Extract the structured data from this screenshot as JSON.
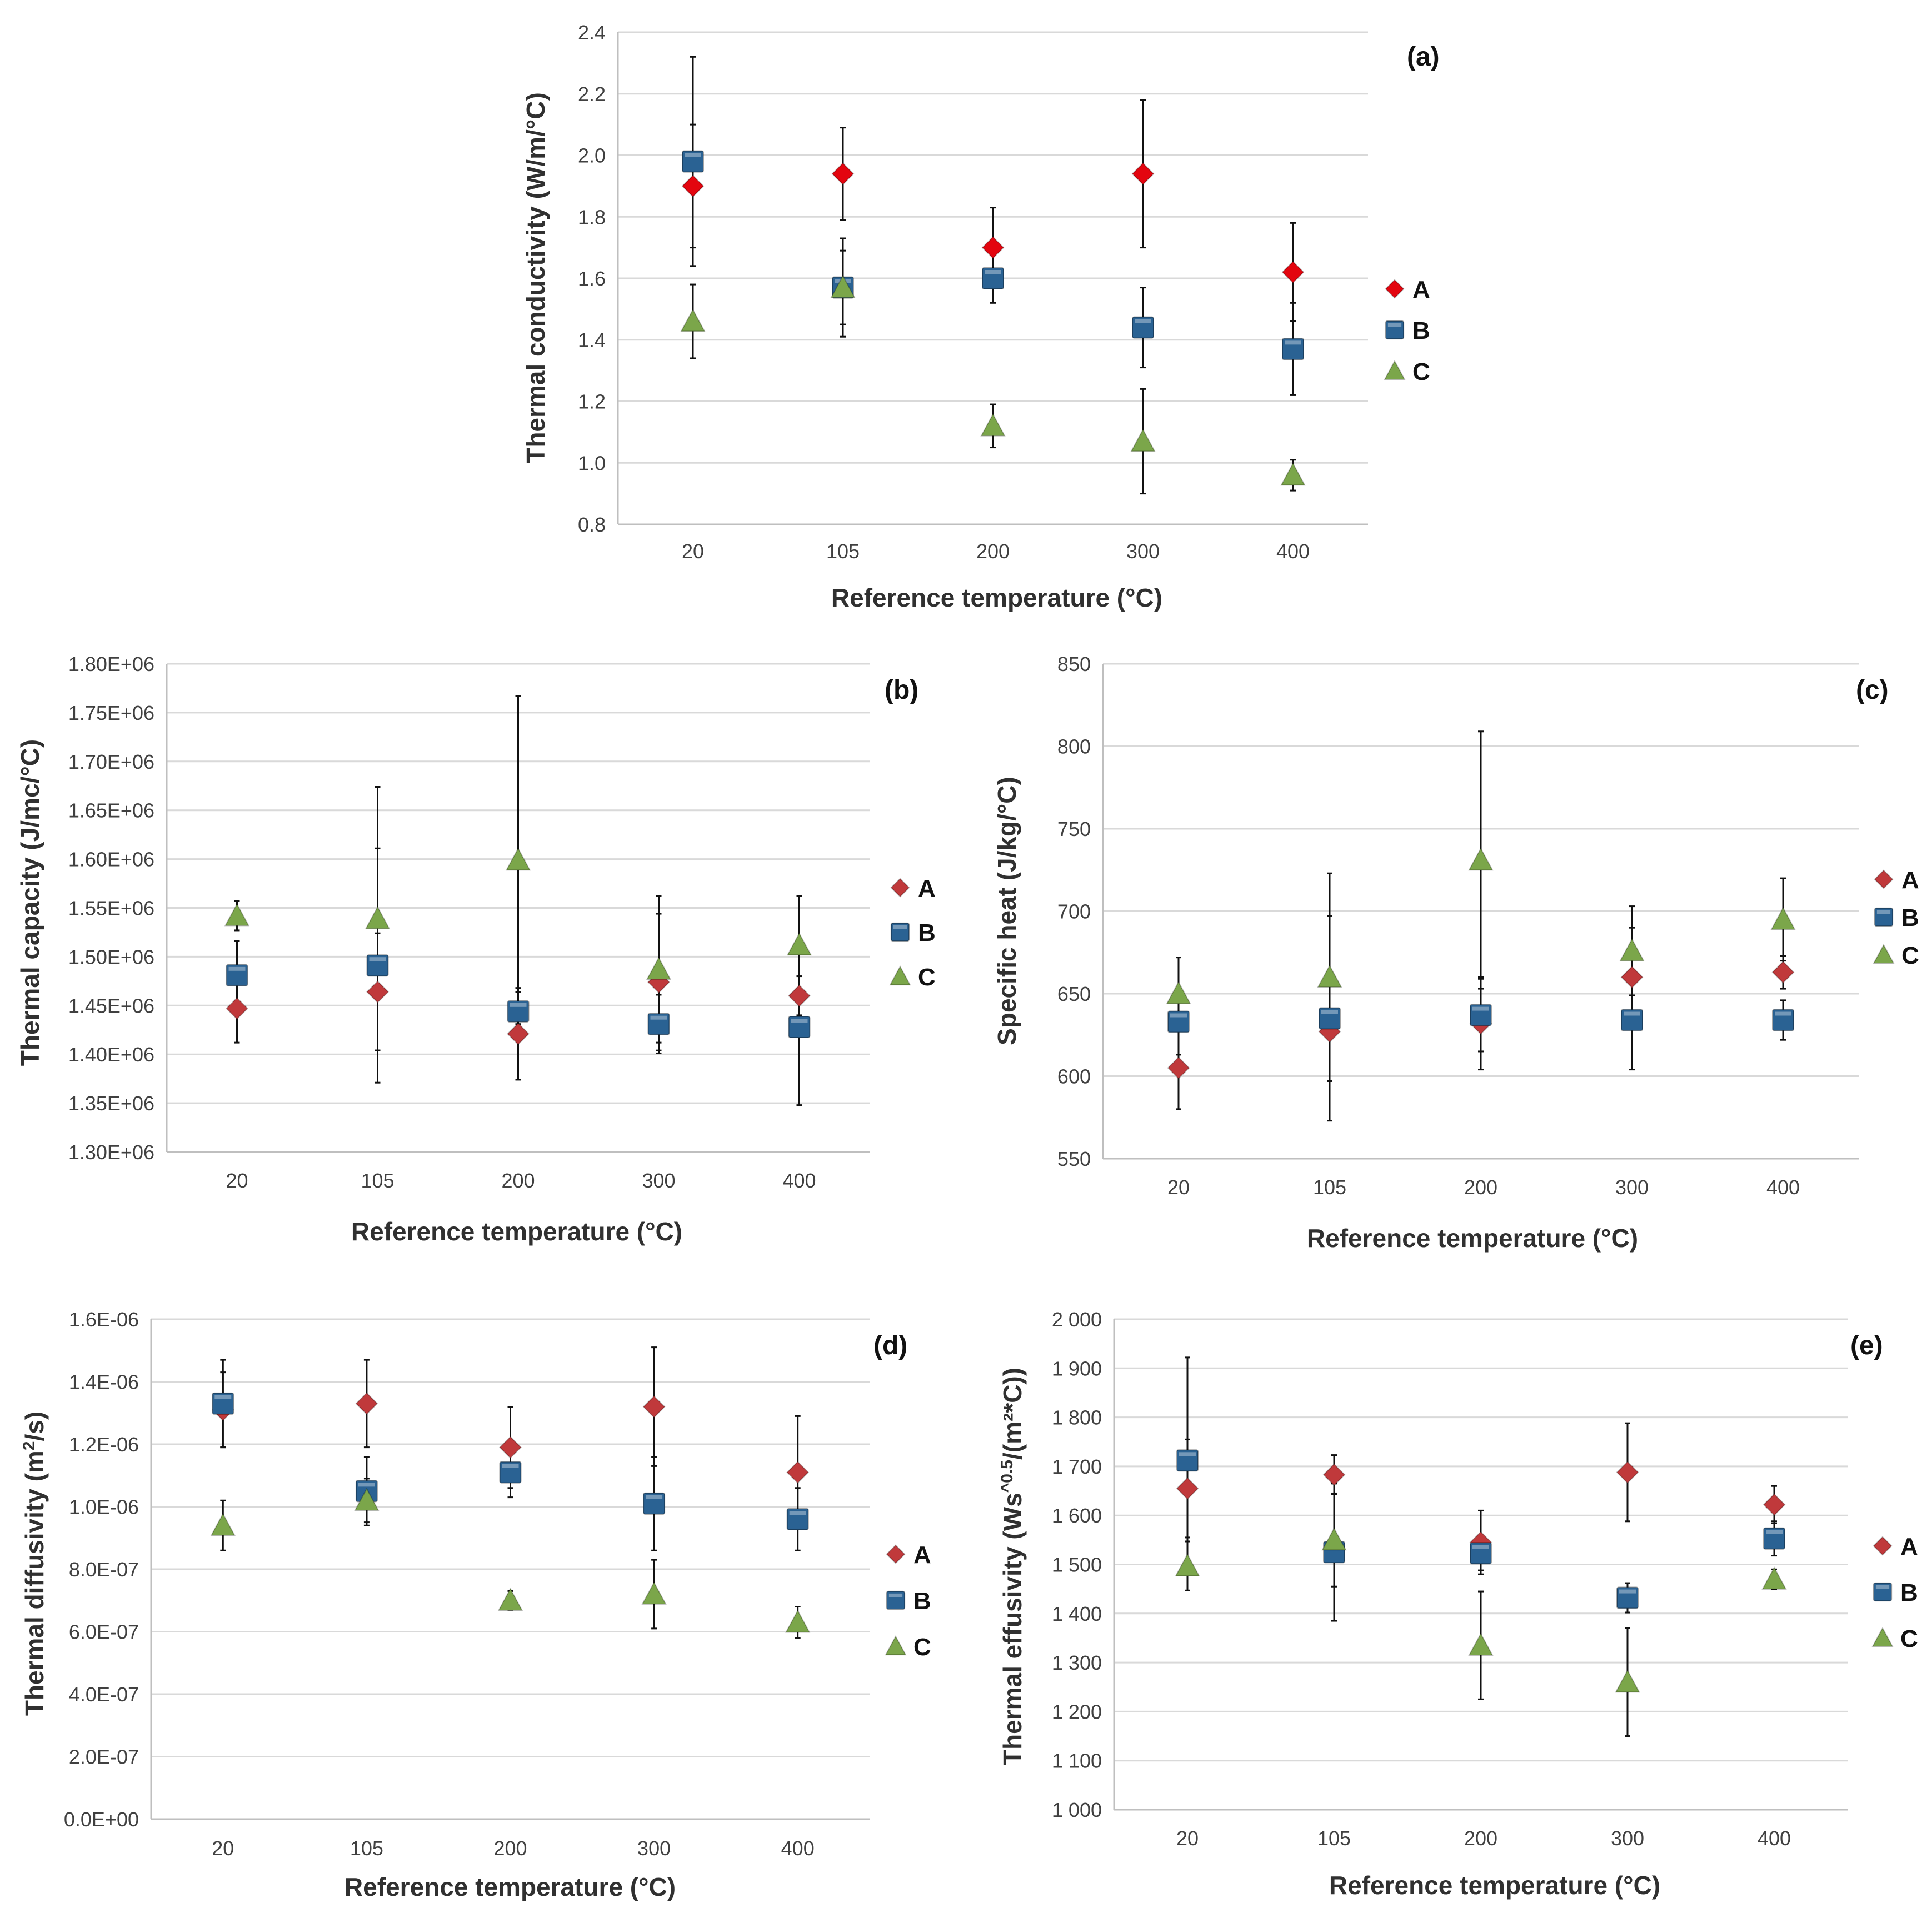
{
  "colors": {
    "A_a": "#e3050f",
    "A": "#c0393b",
    "B": "#2a6293",
    "C": "#7ba64a",
    "gridline": "#d9d9d9",
    "axis": "#bfbfbf",
    "errorbar": "#111111"
  },
  "legend_markers": {
    "A": "diamond",
    "B": "square",
    "C": "triangle"
  },
  "chart_data": [
    {
      "id": "a",
      "type": "scatter",
      "panel_label": "(a)",
      "xlabel": "Reference temperature (°C)",
      "ylabel": "Thermal conductivity (W/m/°C)",
      "categories": [
        "20",
        "105",
        "200",
        "300",
        "400"
      ],
      "ylim": [
        0.8,
        2.4
      ],
      "yticks": [
        0.8,
        1.0,
        1.2,
        1.4,
        1.6,
        1.8,
        2.0,
        2.2,
        2.4
      ],
      "ytick_labels": [
        "0.8",
        "1.0",
        "1.2",
        "1.4",
        "1.6",
        "1.8",
        "2.0",
        "2.2",
        "2.4"
      ],
      "grid": true,
      "legend": [
        "A",
        "B",
        "C"
      ],
      "series": [
        {
          "name": "A",
          "values": [
            1.9,
            1.94,
            1.7,
            1.94,
            1.62
          ],
          "err": [
            0.2,
            0.15,
            0.13,
            0.24,
            0.16
          ]
        },
        {
          "name": "B",
          "values": [
            1.98,
            1.57,
            1.6,
            1.44,
            1.37
          ],
          "err": [
            0.34,
            0.16,
            0.08,
            0.13,
            0.15
          ]
        },
        {
          "name": "C",
          "values": [
            1.46,
            1.57,
            1.12,
            1.07,
            0.96
          ],
          "err": [
            0.12,
            0.12,
            0.07,
            0.17,
            0.05
          ]
        }
      ]
    },
    {
      "id": "b",
      "type": "scatter",
      "panel_label": "(b)",
      "xlabel": "Reference temperature (°C)",
      "ylabel": "Thermal capacity (J/mc/°C)",
      "categories": [
        "20",
        "105",
        "200",
        "300",
        "400"
      ],
      "ylim": [
        1300000,
        1800000
      ],
      "yticks": [
        1300000,
        1350000,
        1400000,
        1450000,
        1500000,
        1550000,
        1600000,
        1650000,
        1700000,
        1750000,
        1800000
      ],
      "ytick_labels": [
        "1.30E+06",
        "1.35E+06",
        "1.40E+06",
        "1.45E+06",
        "1.50E+06",
        "1.55E+06",
        "1.60E+06",
        "1.65E+06",
        "1.70E+06",
        "1.75E+06",
        "1.80E+06"
      ],
      "grid": true,
      "legend": [
        "A",
        "B",
        "C"
      ],
      "series": [
        {
          "name": "A",
          "values": [
            1447000,
            1464000,
            1421000,
            1474000,
            1460000
          ],
          "err": [
            35000,
            60000,
            47000,
            70000,
            20000
          ]
        },
        {
          "name": "B",
          "values": [
            1481000,
            1491000,
            1444000,
            1431000,
            1428000
          ],
          "err": [
            35000,
            120000,
            20000,
            30000,
            80000
          ]
        },
        {
          "name": "C",
          "values": [
            1542000,
            1539000,
            1599000,
            1487000,
            1512000
          ],
          "err": [
            15000,
            135000,
            168000,
            75000,
            50000
          ]
        }
      ]
    },
    {
      "id": "c",
      "type": "scatter",
      "panel_label": "(c)",
      "xlabel": "Reference temperature (°C)",
      "ylabel": "Specific heat (J/kg/°C)",
      "categories": [
        "20",
        "105",
        "200",
        "300",
        "400"
      ],
      "ylim": [
        550,
        850
      ],
      "yticks": [
        550,
        600,
        650,
        700,
        750,
        800,
        850
      ],
      "ytick_labels": [
        "550",
        "600",
        "650",
        "700",
        "750",
        "800",
        "850"
      ],
      "grid": true,
      "legend": [
        "A",
        "B",
        "C"
      ],
      "series": [
        {
          "name": "A",
          "values": [
            605,
            627,
            632,
            660,
            663
          ],
          "err": [
            25,
            30,
            28,
            30,
            10
          ]
        },
        {
          "name": "B",
          "values": [
            633,
            635,
            637,
            634,
            634
          ],
          "err": [
            20,
            62,
            22,
            30,
            12
          ]
        },
        {
          "name": "C",
          "values": [
            650,
            660,
            731,
            676,
            695
          ],
          "err": [
            22,
            63,
            78,
            27,
            25
          ]
        }
      ]
    },
    {
      "id": "d",
      "type": "scatter",
      "panel_label": "(d)",
      "xlabel": "Reference temperature (°C)",
      "ylabel_main": "Thermal diffusivity (m",
      "ylabel_sup": "2",
      "ylabel_tail": "/s)",
      "categories": [
        "20",
        "105",
        "200",
        "300",
        "400"
      ],
      "ylim": [
        0,
        1.6e-06
      ],
      "yticks": [
        0,
        2e-07,
        4e-07,
        6e-07,
        8e-07,
        1e-06,
        1.2e-06,
        1.4e-06,
        1.6e-06
      ],
      "ytick_labels": [
        "0.0E+00",
        "2.0E-07",
        "4.0E-07",
        "6.0E-07",
        "8.0E-07",
        "1.0E-06",
        "1.2E-06",
        "1.4E-06",
        "1.6E-06"
      ],
      "grid": true,
      "legend": [
        "A",
        "B",
        "C"
      ],
      "series": [
        {
          "name": "A",
          "values": [
            1.31e-06,
            1.33e-06,
            1.19e-06,
            1.32e-06,
            1.11e-06
          ],
          "err": [
            1.2e-07,
            1.4e-07,
            1.3e-07,
            1.9e-07,
            1.8e-07
          ]
        },
        {
          "name": "B",
          "values": [
            1.33e-06,
            1.05e-06,
            1.11e-06,
            1.01e-06,
            9.6e-07
          ],
          "err": [
            1.4e-07,
            1.1e-07,
            8e-08,
            1.5e-07,
            1e-07
          ]
        },
        {
          "name": "C",
          "values": [
            9.4e-07,
            1.02e-06,
            7e-07,
            7.2e-07,
            6.3e-07
          ],
          "err": [
            8e-08,
            7e-08,
            3e-08,
            1.1e-07,
            5e-08
          ]
        }
      ]
    },
    {
      "id": "e",
      "type": "scatter",
      "panel_label": "(e)",
      "xlabel": "Reference temperature (°C)",
      "ylabel_main": "Thermal effusivity (Ws",
      "ylabel_sup": "^0.5",
      "ylabel_tail": "/(m²*C))",
      "categories": [
        "20",
        "105",
        "200",
        "300",
        "400"
      ],
      "ylim": [
        1000,
        2000
      ],
      "yticks": [
        1000,
        1100,
        1200,
        1300,
        1400,
        1500,
        1600,
        1700,
        1800,
        1900,
        2000
      ],
      "ytick_labels": [
        "1 000",
        "1 100",
        "1 200",
        "1 300",
        "1 400",
        "1 500",
        "1 600",
        "1 700",
        "1 800",
        "1 900",
        "2 000"
      ],
      "grid": true,
      "legend": [
        "A",
        "B",
        "C"
      ],
      "series": [
        {
          "name": "A",
          "values": [
            1655,
            1683,
            1545,
            1688,
            1622
          ],
          "err": [
            100,
            40,
            65,
            100,
            38
          ]
        },
        {
          "name": "B",
          "values": [
            1712,
            1525,
            1523,
            1432,
            1553
          ],
          "err": [
            210,
            140,
            35,
            30,
            35
          ]
        },
        {
          "name": "C",
          "values": [
            1497,
            1550,
            1335,
            1260,
            1470
          ],
          "err": [
            50,
            95,
            110,
            110,
            20
          ]
        }
      ]
    }
  ]
}
